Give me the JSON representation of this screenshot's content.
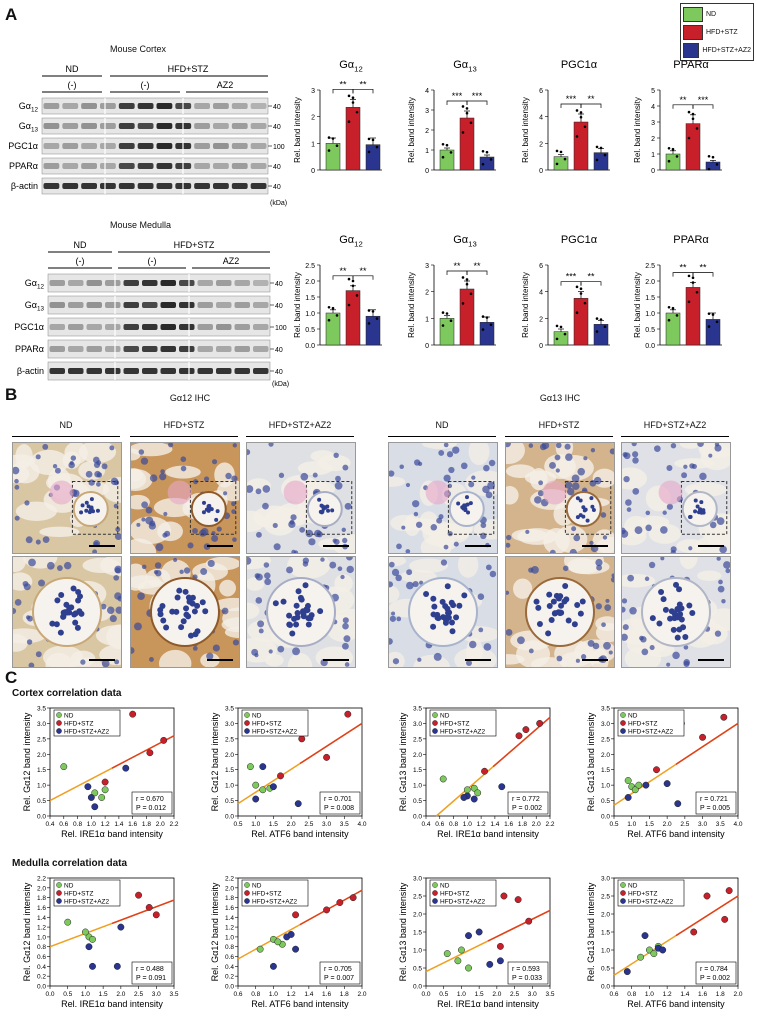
{
  "panels": {
    "A": "A",
    "B": "B",
    "C": "C"
  },
  "legend": [
    {
      "label": "ND",
      "color": "#7dc95e"
    },
    {
      "label": "HFD+STZ",
      "color": "#c8202a"
    },
    {
      "label": "HFD+STZ+AZ2",
      "color": "#2a3590"
    }
  ],
  "blots": {
    "cortex": {
      "title": "Mouse Cortex",
      "groups": [
        "ND",
        "HFD+STZ"
      ],
      "treatments": [
        "(-)",
        "(-)",
        "AZ2"
      ],
      "rows": [
        "Gα12",
        "Gα13",
        "PGC1α",
        "PPARα",
        "β-actin"
      ],
      "markers": [
        "40",
        "40",
        "100",
        "40",
        "40"
      ],
      "unit": "(kDa)"
    },
    "medulla": {
      "title": "Mouse Medulla",
      "groups": [
        "ND",
        "HFD+STZ"
      ],
      "treatments": [
        "(-)",
        "(-)",
        "AZ2"
      ],
      "rows": [
        "Gα12",
        "Gα13",
        "PGC1α",
        "PPARα",
        "β-actin"
      ],
      "markers": [
        "40",
        "40",
        "100",
        "40",
        "40"
      ],
      "unit": "(kDa)"
    }
  },
  "bar_ylabel": "Rel. band intensity",
  "chart_data": [
    {
      "type": "bar",
      "title": "Gα12",
      "section": "cortex",
      "categories": [
        "ND",
        "HFD+STZ",
        "HFD+STZ+AZ2"
      ],
      "values": [
        1.0,
        2.35,
        0.95
      ],
      "errors": [
        0.2,
        0.3,
        0.25
      ],
      "ylim": [
        0,
        3
      ],
      "yticks": [
        "0",
        "1",
        "2",
        "3"
      ],
      "sig": [
        "**",
        "**"
      ]
    },
    {
      "type": "bar",
      "title": "Gα13",
      "section": "cortex",
      "categories": [
        "ND",
        "HFD+STZ",
        "HFD+STZ+AZ2"
      ],
      "values": [
        1.0,
        2.6,
        0.65
      ],
      "errors": [
        0.1,
        0.35,
        0.1
      ],
      "ylim": [
        0,
        4
      ],
      "yticks": [
        "0",
        "1",
        "2",
        "3",
        "4"
      ],
      "sig": [
        "***",
        "***"
      ]
    },
    {
      "type": "bar",
      "title": "PGC1α",
      "section": "cortex",
      "categories": [
        "ND",
        "HFD+STZ",
        "HFD+STZ+AZ2"
      ],
      "values": [
        1.0,
        3.6,
        1.3
      ],
      "errors": [
        0.15,
        0.6,
        0.3
      ],
      "ylim": [
        0,
        6
      ],
      "yticks": [
        "0",
        "2",
        "4",
        "6"
      ],
      "sig": [
        "***",
        "**"
      ]
    },
    {
      "type": "bar",
      "title": "PPARα",
      "section": "cortex",
      "categories": [
        "ND",
        "HFD+STZ",
        "HFD+STZ+AZ2"
      ],
      "values": [
        1.0,
        2.9,
        0.5
      ],
      "errors": [
        0.2,
        0.55,
        0.1
      ],
      "ylim": [
        0,
        5
      ],
      "yticks": [
        "0",
        "1",
        "2",
        "3",
        "4",
        "5"
      ],
      "sig": [
        "**",
        "***"
      ]
    },
    {
      "type": "bar",
      "title": "Gα12",
      "section": "medulla",
      "categories": [
        "ND",
        "HFD+STZ",
        "HFD+STZ+AZ2"
      ],
      "values": [
        1.0,
        1.7,
        0.9
      ],
      "errors": [
        0.1,
        0.15,
        0.2
      ],
      "ylim": [
        0,
        2.5
      ],
      "yticks": [
        "0.0",
        "0.5",
        "1.0",
        "1.5",
        "2.0",
        "2.5"
      ],
      "sig": [
        "**",
        "**"
      ]
    },
    {
      "type": "bar",
      "title": "Gα13",
      "section": "medulla",
      "categories": [
        "ND",
        "HFD+STZ",
        "HFD+STZ+AZ2"
      ],
      "values": [
        1.0,
        2.1,
        0.85
      ],
      "errors": [
        0.1,
        0.3,
        0.2
      ],
      "ylim": [
        0,
        3
      ],
      "yticks": [
        "0",
        "1",
        "2",
        "3"
      ],
      "sig": [
        "**",
        "**"
      ]
    },
    {
      "type": "bar",
      "title": "PGC1α",
      "section": "medulla",
      "categories": [
        "ND",
        "HFD+STZ",
        "HFD+STZ+AZ2"
      ],
      "values": [
        1.0,
        3.5,
        1.55
      ],
      "errors": [
        0.2,
        0.5,
        0.3
      ],
      "ylim": [
        0,
        6
      ],
      "yticks": [
        "0",
        "2",
        "4",
        "6"
      ],
      "sig": [
        "***",
        "**"
      ]
    },
    {
      "type": "bar",
      "title": "PPARα",
      "section": "medulla",
      "categories": [
        "ND",
        "HFD+STZ",
        "HFD+STZ+AZ2"
      ],
      "values": [
        1.0,
        1.8,
        0.8
      ],
      "errors": [
        0.1,
        0.15,
        0.2
      ],
      "ylim": [
        0,
        2.5
      ],
      "yticks": [
        "0.0",
        "0.5",
        "1.0",
        "1.5",
        "2.0",
        "2.5"
      ],
      "sig": [
        "**",
        "**"
      ]
    },
    {
      "type": "scatter",
      "section": "cortex",
      "xlabel": "Rel. IRE1α band intensity",
      "ylabel": "Rel. Gα12 band intensity",
      "xlim": [
        0.4,
        2.2
      ],
      "ylim": [
        0,
        3.5
      ],
      "xticks": [
        "0.4",
        "0.6",
        "0.8",
        "1.0",
        "1.2",
        "1.4",
        "1.6",
        "1.8",
        "2.0",
        "2.2"
      ],
      "yticks": [
        "0.0",
        "0.5",
        "1.0",
        "1.5",
        "2.0",
        "2.5",
        "3.0",
        "3.5"
      ],
      "stat_r": "r = 0.670",
      "stat_p": "P = 0.012",
      "fit": [
        [
          0.4,
          0.5
        ],
        [
          2.2,
          2.6
        ]
      ],
      "points": [
        {
          "g": 0,
          "x": 0.6,
          "y": 1.6
        },
        {
          "g": 0,
          "x": 1.05,
          "y": 0.75
        },
        {
          "g": 0,
          "x": 1.15,
          "y": 0.6
        },
        {
          "g": 0,
          "x": 1.2,
          "y": 0.85
        },
        {
          "g": 1,
          "x": 1.6,
          "y": 3.3
        },
        {
          "g": 1,
          "x": 1.85,
          "y": 2.05
        },
        {
          "g": 1,
          "x": 2.05,
          "y": 2.45
        },
        {
          "g": 1,
          "x": 1.2,
          "y": 1.1
        },
        {
          "g": 2,
          "x": 0.95,
          "y": 0.95
        },
        {
          "g": 2,
          "x": 1.0,
          "y": 0.6
        },
        {
          "g": 2,
          "x": 1.5,
          "y": 1.55
        },
        {
          "g": 2,
          "x": 1.05,
          "y": 0.3
        }
      ]
    },
    {
      "type": "scatter",
      "section": "cortex",
      "xlabel": "Rel. ATF6 band intensity",
      "ylabel": "Rel. Gα12 band intensity",
      "xlim": [
        0.5,
        4.0
      ],
      "ylim": [
        0,
        3.5
      ],
      "xticks": [
        "0.5",
        "1.0",
        "1.5",
        "2.0",
        "2.5",
        "3.0",
        "3.5",
        "4.0"
      ],
      "yticks": [
        "0.0",
        "0.5",
        "1.0",
        "1.5",
        "2.0",
        "2.5",
        "3.0",
        "3.5"
      ],
      "stat_r": "r = 0.701",
      "stat_p": "P = 0.008",
      "fit": [
        [
          0.5,
          0.4
        ],
        [
          4.0,
          3.0
        ]
      ],
      "points": [
        {
          "g": 0,
          "x": 0.85,
          "y": 1.6
        },
        {
          "g": 0,
          "x": 1.0,
          "y": 1.0
        },
        {
          "g": 0,
          "x": 1.2,
          "y": 0.85
        },
        {
          "g": 0,
          "x": 1.4,
          "y": 0.9
        },
        {
          "g": 1,
          "x": 2.3,
          "y": 2.5
        },
        {
          "g": 1,
          "x": 3.0,
          "y": 1.9
        },
        {
          "g": 1,
          "x": 3.6,
          "y": 3.3
        },
        {
          "g": 1,
          "x": 1.7,
          "y": 1.3
        },
        {
          "g": 2,
          "x": 1.2,
          "y": 1.6
        },
        {
          "g": 2,
          "x": 1.5,
          "y": 0.95
        },
        {
          "g": 2,
          "x": 2.2,
          "y": 0.4
        },
        {
          "g": 2,
          "x": 1.0,
          "y": 0.55
        }
      ]
    },
    {
      "type": "scatter",
      "section": "cortex",
      "xlabel": "Rel. IRE1α band intensity",
      "ylabel": "Rel. Gα13 band intensity",
      "xlim": [
        0.4,
        2.2
      ],
      "ylim": [
        0,
        3.5
      ],
      "xticks": [
        "0.4",
        "0.6",
        "0.8",
        "1.0",
        "1.2",
        "1.4",
        "1.6",
        "1.8",
        "2.0",
        "2.2"
      ],
      "yticks": [
        "0.0",
        "0.5",
        "1.0",
        "1.5",
        "2.0",
        "2.5",
        "3.0",
        "3.5"
      ],
      "stat_r": "r = 0.772",
      "stat_p": "P = 0.002",
      "fit": [
        [
          0.55,
          0.0
        ],
        [
          2.2,
          3.2
        ]
      ],
      "points": [
        {
          "g": 0,
          "x": 0.65,
          "y": 1.2
        },
        {
          "g": 0,
          "x": 1.0,
          "y": 0.85
        },
        {
          "g": 0,
          "x": 1.1,
          "y": 0.9
        },
        {
          "g": 0,
          "x": 1.15,
          "y": 0.75
        },
        {
          "g": 1,
          "x": 1.75,
          "y": 2.6
        },
        {
          "g": 1,
          "x": 2.05,
          "y": 3.0
        },
        {
          "g": 1,
          "x": 1.85,
          "y": 2.8
        },
        {
          "g": 1,
          "x": 1.25,
          "y": 1.45
        },
        {
          "g": 2,
          "x": 1.0,
          "y": 0.65
        },
        {
          "g": 2,
          "x": 1.1,
          "y": 0.55
        },
        {
          "g": 2,
          "x": 1.5,
          "y": 0.95
        },
        {
          "g": 2,
          "x": 0.95,
          "y": 0.6
        }
      ]
    },
    {
      "type": "scatter",
      "section": "cortex",
      "xlabel": "Rel. ATF6 band intensity",
      "ylabel": "Rel. Gα13 band intensity",
      "xlim": [
        0.5,
        4.0
      ],
      "ylim": [
        0,
        3.5
      ],
      "xticks": [
        "0.5",
        "1.0",
        "1.5",
        "2.0",
        "2.5",
        "3.0",
        "3.5",
        "4.0"
      ],
      "yticks": [
        "0.0",
        "0.5",
        "1.0",
        "1.5",
        "2.0",
        "2.5",
        "3.0",
        "3.5"
      ],
      "stat_r": "r = 0.721",
      "stat_p": "P = 0.005",
      "fit": [
        [
          0.5,
          0.35
        ],
        [
          4.0,
          3.0
        ]
      ],
      "points": [
        {
          "g": 0,
          "x": 0.9,
          "y": 1.15
        },
        {
          "g": 0,
          "x": 1.0,
          "y": 0.95
        },
        {
          "g": 0,
          "x": 1.1,
          "y": 0.85
        },
        {
          "g": 0,
          "x": 1.2,
          "y": 1.0
        },
        {
          "g": 1,
          "x": 2.4,
          "y": 3.0
        },
        {
          "g": 1,
          "x": 3.0,
          "y": 2.55
        },
        {
          "g": 1,
          "x": 3.6,
          "y": 3.2
        },
        {
          "g": 1,
          "x": 1.7,
          "y": 1.5
        },
        {
          "g": 2,
          "x": 1.4,
          "y": 1.0
        },
        {
          "g": 2,
          "x": 2.0,
          "y": 1.05
        },
        {
          "g": 2,
          "x": 2.3,
          "y": 0.4
        },
        {
          "g": 2,
          "x": 0.9,
          "y": 0.6
        }
      ]
    },
    {
      "type": "scatter",
      "section": "medulla",
      "xlabel": "Rel. IRE1α band intensity",
      "ylabel": "Rel. Gα12 band intensity",
      "xlim": [
        0.0,
        3.5
      ],
      "ylim": [
        0,
        2.2
      ],
      "xticks": [
        "0.0",
        "0.5",
        "1.0",
        "1.5",
        "2.0",
        "2.5",
        "3.0",
        "3.5"
      ],
      "yticks": [
        "0.0",
        "0.2",
        "0.4",
        "0.6",
        "0.8",
        "1.0",
        "1.2",
        "1.4",
        "1.6",
        "1.8",
        "2.0",
        "2.2"
      ],
      "stat_r": "r = 0.488",
      "stat_p": "P = 0.091",
      "fit": [
        [
          0.0,
          0.8
        ],
        [
          3.5,
          1.75
        ]
      ],
      "points": [
        {
          "g": 0,
          "x": 0.5,
          "y": 1.3
        },
        {
          "g": 0,
          "x": 1.1,
          "y": 1.0
        },
        {
          "g": 0,
          "x": 1.2,
          "y": 0.95
        },
        {
          "g": 0,
          "x": 1.0,
          "y": 1.1
        },
        {
          "g": 1,
          "x": 2.5,
          "y": 1.85
        },
        {
          "g": 1,
          "x": 2.8,
          "y": 1.6
        },
        {
          "g": 1,
          "x": 3.0,
          "y": 1.45
        },
        {
          "g": 1,
          "x": 1.6,
          "y": 2.0
        },
        {
          "g": 2,
          "x": 1.1,
          "y": 0.8
        },
        {
          "g": 2,
          "x": 1.2,
          "y": 0.4
        },
        {
          "g": 2,
          "x": 2.0,
          "y": 1.2
        },
        {
          "g": 2,
          "x": 1.9,
          "y": 0.4
        }
      ]
    },
    {
      "type": "scatter",
      "section": "medulla",
      "xlabel": "Rel. ATF6 band intensity",
      "ylabel": "Rel. Gα12 band intensity",
      "xlim": [
        0.6,
        2.0
      ],
      "ylim": [
        0,
        2.2
      ],
      "xticks": [
        "0.6",
        "0.8",
        "1.0",
        "1.2",
        "1.4",
        "1.6",
        "1.8",
        "2.0"
      ],
      "yticks": [
        "0.0",
        "0.2",
        "0.4",
        "0.6",
        "0.8",
        "1.0",
        "1.2",
        "1.4",
        "1.6",
        "1.8",
        "2.0",
        "2.2"
      ],
      "stat_r": "r = 0.705",
      "stat_p": "P = 0.007",
      "fit": [
        [
          0.6,
          0.55
        ],
        [
          2.0,
          1.95
        ]
      ],
      "points": [
        {
          "g": 0,
          "x": 0.85,
          "y": 0.75
        },
        {
          "g": 0,
          "x": 1.0,
          "y": 0.95
        },
        {
          "g": 0,
          "x": 1.1,
          "y": 0.85
        },
        {
          "g": 0,
          "x": 1.05,
          "y": 0.9
        },
        {
          "g": 1,
          "x": 1.6,
          "y": 1.55
        },
        {
          "g": 1,
          "x": 1.75,
          "y": 1.7
        },
        {
          "g": 1,
          "x": 1.9,
          "y": 1.8
        },
        {
          "g": 1,
          "x": 1.25,
          "y": 1.45
        },
        {
          "g": 2,
          "x": 1.15,
          "y": 1.0
        },
        {
          "g": 2,
          "x": 1.2,
          "y": 1.05
        },
        {
          "g": 2,
          "x": 1.25,
          "y": 0.75
        },
        {
          "g": 2,
          "x": 1.0,
          "y": 0.4
        }
      ]
    },
    {
      "type": "scatter",
      "section": "medulla",
      "xlabel": "Rel. IRE1α band intensity",
      "ylabel": "Rel. Gα13 band intensity",
      "xlim": [
        0.0,
        3.5
      ],
      "ylim": [
        0,
        3.0
      ],
      "xticks": [
        "0.0",
        "0.5",
        "1.0",
        "1.5",
        "2.0",
        "2.5",
        "3.0",
        "3.5"
      ],
      "yticks": [
        "0.0",
        "0.5",
        "1.0",
        "1.5",
        "2.0",
        "2.5",
        "3.0"
      ],
      "stat_r": "r = 0.593",
      "stat_p": "P = 0.033",
      "fit": [
        [
          0.0,
          0.4
        ],
        [
          3.5,
          2.1
        ]
      ],
      "points": [
        {
          "g": 0,
          "x": 0.6,
          "y": 0.9
        },
        {
          "g": 0,
          "x": 0.9,
          "y": 0.7
        },
        {
          "g": 0,
          "x": 1.0,
          "y": 1.0
        },
        {
          "g": 0,
          "x": 1.2,
          "y": 0.5
        },
        {
          "g": 1,
          "x": 2.2,
          "y": 2.5
        },
        {
          "g": 1,
          "x": 2.6,
          "y": 2.4
        },
        {
          "g": 1,
          "x": 2.9,
          "y": 1.8
        },
        {
          "g": 1,
          "x": 2.1,
          "y": 1.1
        },
        {
          "g": 2,
          "x": 1.2,
          "y": 1.4
        },
        {
          "g": 2,
          "x": 1.5,
          "y": 1.5
        },
        {
          "g": 2,
          "x": 1.8,
          "y": 0.6
        },
        {
          "g": 2,
          "x": 2.1,
          "y": 0.7
        }
      ]
    },
    {
      "type": "scatter",
      "section": "medulla",
      "xlabel": "Rel. ATF6 band intensity",
      "ylabel": "Rel. Gα13 band intensity",
      "xlim": [
        0.6,
        2.0
      ],
      "ylim": [
        0,
        3.0
      ],
      "xticks": [
        "0.6",
        "0.8",
        "1.0",
        "1.2",
        "1.4",
        "1.6",
        "1.8",
        "2.0"
      ],
      "yticks": [
        "0.0",
        "0.5",
        "1.0",
        "1.5",
        "2.0",
        "2.5",
        "3.0"
      ],
      "stat_r": "r = 0.784",
      "stat_p": "P = 0.002",
      "fit": [
        [
          0.6,
          0.3
        ],
        [
          2.0,
          2.5
        ]
      ],
      "points": [
        {
          "g": 0,
          "x": 0.9,
          "y": 0.8
        },
        {
          "g": 0,
          "x": 1.0,
          "y": 1.0
        },
        {
          "g": 0,
          "x": 1.1,
          "y": 1.1
        },
        {
          "g": 0,
          "x": 1.05,
          "y": 0.9
        },
        {
          "g": 1,
          "x": 1.65,
          "y": 2.5
        },
        {
          "g": 1,
          "x": 1.85,
          "y": 1.85
        },
        {
          "g": 1,
          "x": 1.9,
          "y": 2.65
        },
        {
          "g": 1,
          "x": 1.5,
          "y": 1.5
        },
        {
          "g": 2,
          "x": 0.95,
          "y": 1.4
        },
        {
          "g": 2,
          "x": 1.1,
          "y": 1.05
        },
        {
          "g": 2,
          "x": 1.15,
          "y": 1.0
        },
        {
          "g": 2,
          "x": 0.75,
          "y": 0.4
        }
      ]
    }
  ],
  "ihc": {
    "left_title": "Gα12 IHC",
    "right_title": "Gα13 IHC",
    "groups": [
      "ND",
      "HFD+STZ",
      "HFD+STZ+AZ2"
    ]
  },
  "sections": {
    "cortex": "Cortex correlation data",
    "medulla": "Medulla correlation data"
  }
}
